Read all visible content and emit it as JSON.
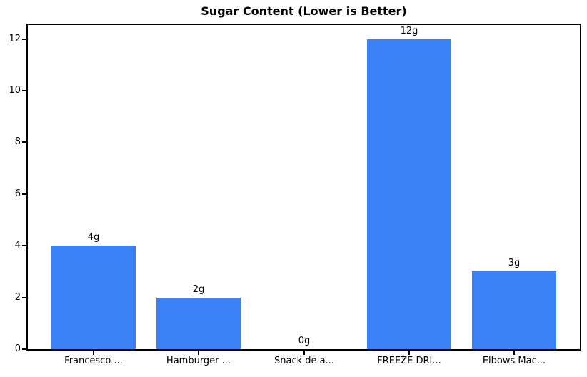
{
  "chart_data": {
    "type": "bar",
    "title": "Sugar Content (Lower is Better)",
    "categories": [
      "Francesco ...",
      "Hamburger ...",
      "Snack de a...",
      "FREEZE DRI...",
      "Elbows Mac..."
    ],
    "values": [
      4,
      2,
      0,
      12,
      3
    ],
    "bar_labels": [
      "4g",
      "2g",
      "0g",
      "12g",
      "3g"
    ],
    "xlabel": "",
    "ylabel": "",
    "ylim": [
      0,
      12.6
    ],
    "yticks": [
      0,
      2,
      4,
      6,
      8,
      10,
      12
    ],
    "grid": false,
    "legend_position": "none",
    "bar_color": "#3b82f6",
    "axis_color": "#000000",
    "background_color": "#ffffff"
  }
}
